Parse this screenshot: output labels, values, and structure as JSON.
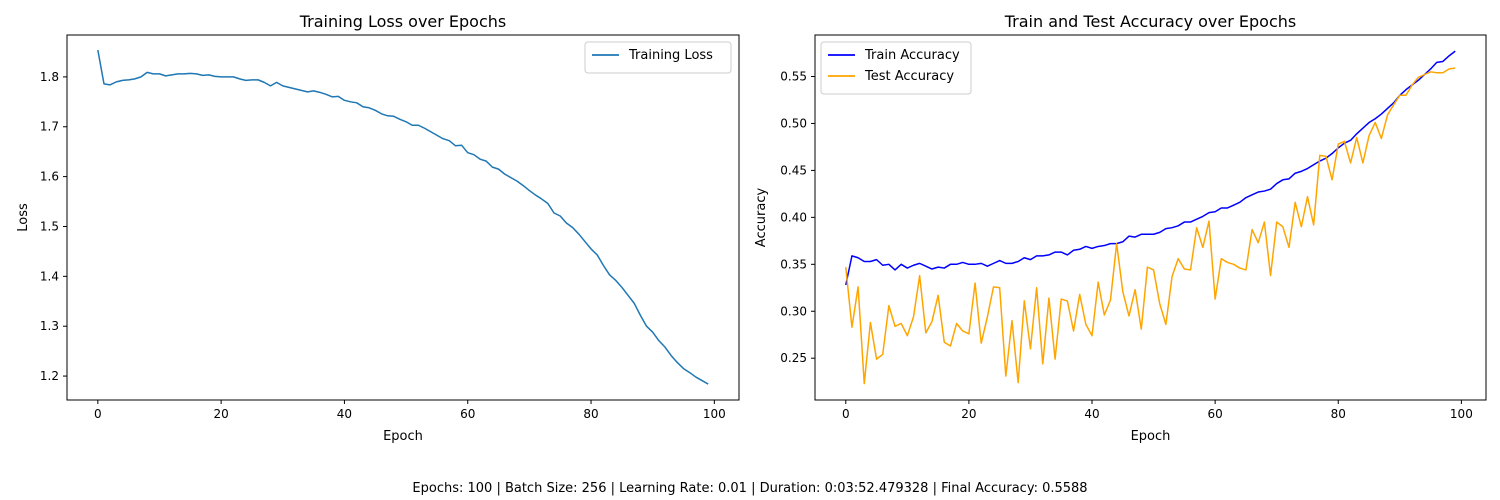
{
  "chart_data": [
    {
      "type": "line",
      "title": "Training Loss over Epochs",
      "xlabel": "Epoch",
      "ylabel": "Loss",
      "xlim": [
        -5,
        104
      ],
      "ylim": [
        1.152,
        1.884
      ],
      "xticks": [
        0,
        20,
        40,
        60,
        80,
        100
      ],
      "xtick_labels": [
        "0",
        "20",
        "40",
        "60",
        "80",
        "100"
      ],
      "yticks": [
        1.2,
        1.3,
        1.4,
        1.5,
        1.6,
        1.7,
        1.8
      ],
      "ytick_labels": [
        "1.2",
        "1.3",
        "1.4",
        "1.5",
        "1.6",
        "1.7",
        "1.8"
      ],
      "legend_loc": "upper right",
      "series": [
        {
          "name": "Training Loss",
          "color": "#1f77b4",
          "x": [
            0,
            1,
            2,
            3,
            4,
            5,
            6,
            7,
            8,
            9,
            10,
            11,
            12,
            13,
            14,
            15,
            16,
            17,
            18,
            19,
            20,
            21,
            22,
            23,
            24,
            25,
            26,
            27,
            28,
            29,
            30,
            31,
            32,
            33,
            34,
            35,
            36,
            37,
            38,
            39,
            40,
            41,
            42,
            43,
            44,
            45,
            46,
            47,
            48,
            49,
            50,
            51,
            52,
            53,
            54,
            55,
            56,
            57,
            58,
            59,
            60,
            61,
            62,
            63,
            64,
            65,
            66,
            67,
            68,
            69,
            70,
            71,
            72,
            73,
            74,
            75,
            76,
            77,
            78,
            79,
            80,
            81,
            82,
            83,
            84,
            85,
            86,
            87,
            88,
            89,
            90,
            91,
            92,
            93,
            94,
            95,
            96,
            97,
            98,
            99
          ],
          "values": [
            1.854,
            1.786,
            1.784,
            1.79,
            1.793,
            1.794,
            1.796,
            1.8,
            1.809,
            1.806,
            1.806,
            1.802,
            1.804,
            1.806,
            1.806,
            1.807,
            1.806,
            1.803,
            1.804,
            1.801,
            1.8,
            1.8,
            1.8,
            1.796,
            1.793,
            1.794,
            1.794,
            1.789,
            1.782,
            1.789,
            1.782,
            1.779,
            1.776,
            1.773,
            1.77,
            1.772,
            1.769,
            1.765,
            1.76,
            1.761,
            1.753,
            1.75,
            1.748,
            1.74,
            1.738,
            1.733,
            1.726,
            1.722,
            1.721,
            1.715,
            1.71,
            1.703,
            1.703,
            1.697,
            1.69,
            1.683,
            1.676,
            1.672,
            1.662,
            1.663,
            1.648,
            1.644,
            1.635,
            1.631,
            1.619,
            1.615,
            1.605,
            1.598,
            1.591,
            1.582,
            1.572,
            1.563,
            1.555,
            1.546,
            1.527,
            1.521,
            1.507,
            1.498,
            1.485,
            1.47,
            1.455,
            1.443,
            1.422,
            1.403,
            1.392,
            1.378,
            1.362,
            1.346,
            1.322,
            1.3,
            1.288,
            1.271,
            1.258,
            1.241,
            1.227,
            1.215,
            1.207,
            1.198,
            1.191,
            1.184
          ]
        }
      ]
    },
    {
      "type": "line",
      "title": "Train and Test Accuracy over Epochs",
      "xlabel": "Epoch",
      "ylabel": "Accuracy",
      "xlim": [
        -5,
        104
      ],
      "ylim": [
        0.2055,
        0.5942
      ],
      "xticks": [
        0,
        20,
        40,
        60,
        80,
        100
      ],
      "xtick_labels": [
        "0",
        "20",
        "40",
        "60",
        "80",
        "100"
      ],
      "yticks": [
        0.25,
        0.3,
        0.35,
        0.4,
        0.45,
        0.5,
        0.55
      ],
      "ytick_labels": [
        "0.25",
        "0.30",
        "0.35",
        "0.40",
        "0.45",
        "0.50",
        "0.55"
      ],
      "legend_loc": "upper left",
      "series": [
        {
          "name": "Train Accuracy",
          "color": "#0000ff",
          "x": [
            0,
            1,
            2,
            3,
            4,
            5,
            6,
            7,
            8,
            9,
            10,
            11,
            12,
            13,
            14,
            15,
            16,
            17,
            18,
            19,
            20,
            21,
            22,
            23,
            24,
            25,
            26,
            27,
            28,
            29,
            30,
            31,
            32,
            33,
            34,
            35,
            36,
            37,
            38,
            39,
            40,
            41,
            42,
            43,
            44,
            45,
            46,
            47,
            48,
            49,
            50,
            51,
            52,
            53,
            54,
            55,
            56,
            57,
            58,
            59,
            60,
            61,
            62,
            63,
            64,
            65,
            66,
            67,
            68,
            69,
            70,
            71,
            72,
            73,
            74,
            75,
            76,
            77,
            78,
            79,
            80,
            81,
            82,
            83,
            84,
            85,
            86,
            87,
            88,
            89,
            90,
            91,
            92,
            93,
            94,
            95,
            96,
            97,
            98,
            99
          ],
          "values": [
            0.328,
            0.359,
            0.357,
            0.353,
            0.353,
            0.355,
            0.349,
            0.35,
            0.344,
            0.35,
            0.346,
            0.349,
            0.351,
            0.348,
            0.345,
            0.347,
            0.346,
            0.35,
            0.35,
            0.352,
            0.35,
            0.35,
            0.351,
            0.348,
            0.351,
            0.354,
            0.351,
            0.351,
            0.353,
            0.357,
            0.355,
            0.359,
            0.359,
            0.36,
            0.363,
            0.363,
            0.36,
            0.365,
            0.366,
            0.369,
            0.367,
            0.369,
            0.37,
            0.372,
            0.372,
            0.374,
            0.38,
            0.379,
            0.382,
            0.382,
            0.382,
            0.384,
            0.388,
            0.389,
            0.391,
            0.395,
            0.395,
            0.398,
            0.401,
            0.405,
            0.406,
            0.41,
            0.41,
            0.413,
            0.416,
            0.421,
            0.424,
            0.427,
            0.428,
            0.43,
            0.436,
            0.44,
            0.441,
            0.447,
            0.449,
            0.452,
            0.456,
            0.46,
            0.463,
            0.468,
            0.474,
            0.479,
            0.482,
            0.489,
            0.495,
            0.501,
            0.505,
            0.51,
            0.516,
            0.522,
            0.53,
            0.536,
            0.541,
            0.546,
            0.552,
            0.558,
            0.565,
            0.566,
            0.572,
            0.577
          ]
        },
        {
          "name": "Test Accuracy",
          "color": "#ffa500",
          "x": [
            0,
            1,
            2,
            3,
            4,
            5,
            6,
            7,
            8,
            9,
            10,
            11,
            12,
            13,
            14,
            15,
            16,
            17,
            18,
            19,
            20,
            21,
            22,
            23,
            24,
            25,
            26,
            27,
            28,
            29,
            30,
            31,
            32,
            33,
            34,
            35,
            36,
            37,
            38,
            39,
            40,
            41,
            42,
            43,
            44,
            45,
            46,
            47,
            48,
            49,
            50,
            51,
            52,
            53,
            54,
            55,
            56,
            57,
            58,
            59,
            60,
            61,
            62,
            63,
            64,
            65,
            66,
            67,
            68,
            69,
            70,
            71,
            72,
            73,
            74,
            75,
            76,
            77,
            78,
            79,
            80,
            81,
            82,
            83,
            84,
            85,
            86,
            87,
            88,
            89,
            90,
            91,
            92,
            93,
            94,
            95,
            96,
            97,
            98,
            99
          ],
          "values": [
            0.347,
            0.283,
            0.326,
            0.223,
            0.288,
            0.249,
            0.254,
            0.306,
            0.284,
            0.287,
            0.274,
            0.294,
            0.338,
            0.277,
            0.289,
            0.317,
            0.267,
            0.263,
            0.287,
            0.279,
            0.276,
            0.33,
            0.266,
            0.294,
            0.326,
            0.325,
            0.231,
            0.29,
            0.224,
            0.311,
            0.26,
            0.325,
            0.244,
            0.314,
            0.249,
            0.313,
            0.311,
            0.279,
            0.318,
            0.286,
            0.274,
            0.331,
            0.296,
            0.312,
            0.372,
            0.321,
            0.295,
            0.323,
            0.281,
            0.347,
            0.344,
            0.308,
            0.286,
            0.337,
            0.356,
            0.345,
            0.344,
            0.389,
            0.368,
            0.396,
            0.313,
            0.356,
            0.352,
            0.35,
            0.346,
            0.344,
            0.387,
            0.373,
            0.395,
            0.338,
            0.395,
            0.39,
            0.368,
            0.416,
            0.39,
            0.422,
            0.392,
            0.466,
            0.465,
            0.44,
            0.478,
            0.481,
            0.458,
            0.485,
            0.458,
            0.487,
            0.501,
            0.484,
            0.509,
            0.52,
            0.53,
            0.53,
            0.541,
            0.549,
            0.552,
            0.555,
            0.554,
            0.554,
            0.558,
            0.559
          ]
        }
      ]
    }
  ],
  "footer": {
    "text": "Epochs: 100 | Batch Size: 256 | Learning Rate: 0.01 | Duration: 0:03:52.479328 | Final Accuracy: 0.5588"
  }
}
